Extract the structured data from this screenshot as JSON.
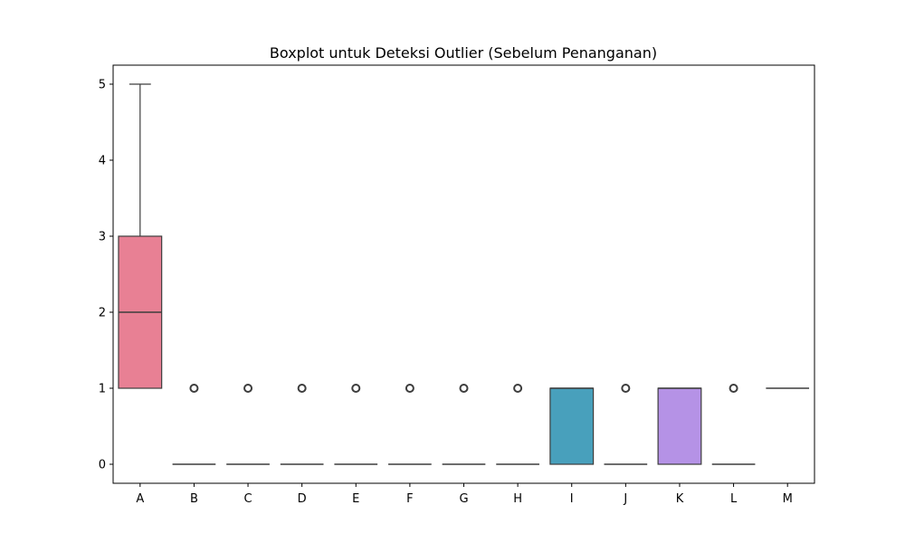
{
  "chart_data": {
    "type": "box",
    "title": "Boxplot untuk Deteksi Outlier (Sebelum Penanganan)",
    "xlabel": "",
    "ylabel": "",
    "ylim": [
      -0.25,
      5.25
    ],
    "yticks": [
      0,
      1,
      2,
      3,
      4,
      5
    ],
    "grid": false,
    "legend": "none",
    "categories": [
      "A",
      "B",
      "C",
      "D",
      "E",
      "F",
      "G",
      "H",
      "I",
      "J",
      "K",
      "L",
      "M"
    ],
    "boxes": [
      {
        "category": "A",
        "whisker_low": 1,
        "q1": 1,
        "median": 2,
        "q3": 3,
        "whisker_high": 5,
        "outliers": [],
        "color": "#e88094"
      },
      {
        "category": "B",
        "whisker_low": 0,
        "q1": 0,
        "median": 0,
        "q3": 0,
        "whisker_high": 0,
        "outliers": [
          1
        ],
        "color": "#d98d4e"
      },
      {
        "category": "C",
        "whisker_low": 0,
        "q1": 0,
        "median": 0,
        "q3": 0,
        "whisker_high": 0,
        "outliers": [
          1
        ],
        "color": "#b8a04c"
      },
      {
        "category": "D",
        "whisker_low": 0,
        "q1": 0,
        "median": 0,
        "q3": 0,
        "whisker_high": 0,
        "outliers": [
          1
        ],
        "color": "#94aa4a"
      },
      {
        "category": "E",
        "whisker_low": 0,
        "q1": 0,
        "median": 0,
        "q3": 0,
        "whisker_high": 0,
        "outliers": [
          1
        ],
        "color": "#4fb45e"
      },
      {
        "category": "F",
        "whisker_low": 0,
        "q1": 0,
        "median": 0,
        "q3": 0,
        "whisker_high": 0,
        "outliers": [
          1
        ],
        "color": "#4fb196"
      },
      {
        "category": "G",
        "whisker_low": 0,
        "q1": 0,
        "median": 0,
        "q3": 0,
        "whisker_high": 0,
        "outliers": [
          1
        ],
        "color": "#50aeae"
      },
      {
        "category": "H",
        "whisker_low": 0,
        "q1": 0,
        "median": 0,
        "q3": 0,
        "whisker_high": 0,
        "outliers": [
          1
        ],
        "color": "#52a9c2"
      },
      {
        "category": "I",
        "whisker_low": 0,
        "q1": 0,
        "median": 1,
        "q3": 1,
        "whisker_high": 1,
        "outliers": [],
        "color": "#48a0bc"
      },
      {
        "category": "J",
        "whisker_low": 0,
        "q1": 0,
        "median": 0,
        "q3": 0,
        "whisker_high": 0,
        "outliers": [
          1
        ],
        "color": "#8c9ae6"
      },
      {
        "category": "K",
        "whisker_low": 0,
        "q1": 0,
        "median": 1,
        "q3": 1,
        "whisker_high": 1,
        "outliers": [],
        "color": "#b592e6"
      },
      {
        "category": "L",
        "whisker_low": 0,
        "q1": 0,
        "median": 0,
        "q3": 0,
        "whisker_high": 0,
        "outliers": [
          1
        ],
        "color": "#e27fd4"
      },
      {
        "category": "M",
        "whisker_low": 1,
        "q1": 1,
        "median": 1,
        "q3": 1,
        "whisker_high": 1,
        "outliers": [],
        "color": "#e57fb0"
      }
    ]
  }
}
